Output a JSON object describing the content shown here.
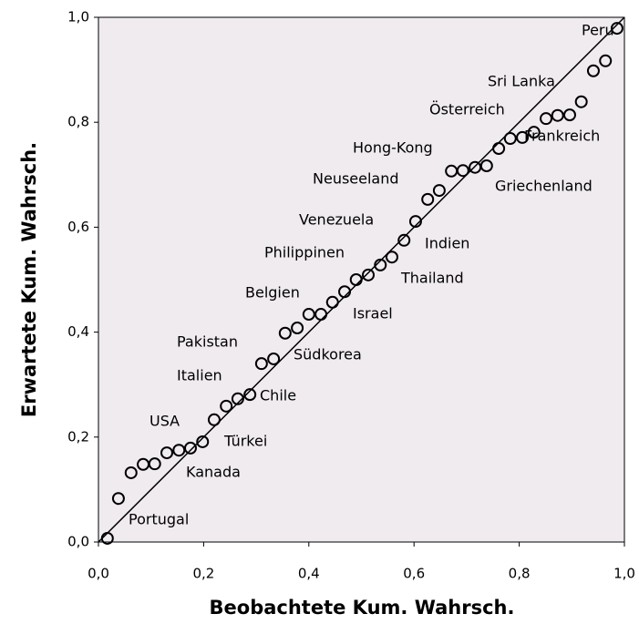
{
  "chart_data": {
    "type": "scatter",
    "xlabel": "Beobachtete Kum. Wahrsch.",
    "ylabel": "Erwartete Kum. Wahrsch.",
    "xlim": [
      0,
      1
    ],
    "ylim": [
      0,
      1
    ],
    "xticks": [
      {
        "value": 0,
        "label": "0,0"
      },
      {
        "value": 0.2,
        "label": "0,2"
      },
      {
        "value": 0.4,
        "label": "0,4"
      },
      {
        "value": 0.6,
        "label": "0,6"
      },
      {
        "value": 0.8,
        "label": "0,8"
      },
      {
        "value": 1,
        "label": "1,0"
      }
    ],
    "yticks": [
      {
        "value": 0,
        "label": "0,0"
      },
      {
        "value": 0.2,
        "label": "0,2"
      },
      {
        "value": 0.4,
        "label": "0,4"
      },
      {
        "value": 0.6,
        "label": "0,6"
      },
      {
        "value": 0.8,
        "label": "0,8"
      },
      {
        "value": 1,
        "label": "1,0"
      }
    ],
    "reference_line": true,
    "background": "#efebef",
    "color": "#000000",
    "x": [
      0.017,
      0.038,
      0.062,
      0.085,
      0.107,
      0.13,
      0.153,
      0.175,
      0.198,
      0.22,
      0.243,
      0.265,
      0.288,
      0.31,
      0.333,
      0.355,
      0.378,
      0.4,
      0.423,
      0.445,
      0.468,
      0.49,
      0.513,
      0.536,
      0.558,
      0.581,
      0.603,
      0.626,
      0.648,
      0.671,
      0.693,
      0.716,
      0.738,
      0.761,
      0.783,
      0.806,
      0.828,
      0.851,
      0.873,
      0.896,
      0.918,
      0.941,
      0.964,
      0.986
    ],
    "values": [
      0.007,
      0.083,
      0.132,
      0.148,
      0.149,
      0.17,
      0.175,
      0.179,
      0.191,
      0.233,
      0.259,
      0.273,
      0.281,
      0.34,
      0.349,
      0.398,
      0.408,
      0.434,
      0.434,
      0.457,
      0.477,
      0.5,
      0.509,
      0.528,
      0.543,
      0.575,
      0.611,
      0.653,
      0.67,
      0.707,
      0.708,
      0.714,
      0.717,
      0.75,
      0.769,
      0.771,
      0.781,
      0.807,
      0.813,
      0.814,
      0.839,
      0.898,
      0.917,
      0.979
    ],
    "annotations": [
      "Peru",
      "Sri Lanka",
      "Österreich",
      "Frankreich",
      "Hong-Kong",
      "Griechenland",
      "Neuseeland",
      "Venezuela",
      "Indien",
      "Philippinen",
      "Thailand",
      "Belgien",
      "Israel",
      "Pakistan",
      "Südkorea",
      "Italien",
      "Chile",
      "USA",
      "Türkei",
      "Kanada",
      "Portugal"
    ]
  }
}
